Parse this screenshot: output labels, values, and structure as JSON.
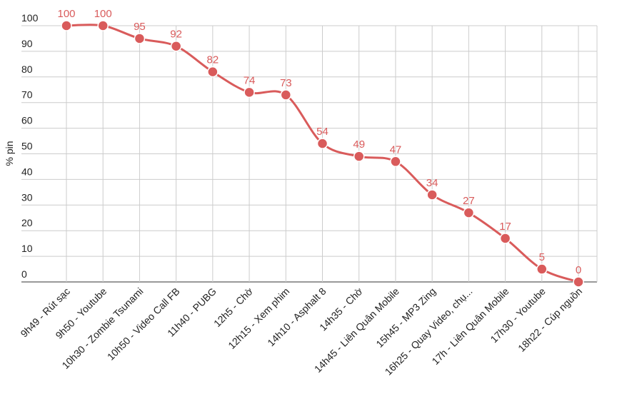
{
  "chart_data": {
    "type": "line",
    "y_label": "% pin",
    "categories": [
      "9h49 - Rút sạc",
      "9h50 - Youtube",
      "10h30 - Zombie Tsunami",
      "10h50 - Video Call FB",
      "11h40 - PUBG",
      "12h5 - Chờ",
      "12h15 - Xem phim",
      "14h10 - Asphalt 8",
      "14h35 - Chờ",
      "14h45 - Liên Quân Mobile",
      "15h45 - MP3 Zing",
      "16h25 - Quay Video, chụ...",
      "17h - Liên Quân Mobile",
      "17h30 - Youtube",
      "18h22 - Cúp nguồn"
    ],
    "series": [
      {
        "name": "% pin",
        "color": "#d95b5b",
        "values": [
          100,
          100,
          95,
          92,
          82,
          74,
          73,
          54,
          49,
          47,
          34,
          27,
          17,
          5,
          0
        ]
      }
    ],
    "ylim": [
      0,
      100
    ],
    "yticks": [
      0,
      10,
      20,
      30,
      40,
      50,
      60,
      70,
      80,
      90,
      100
    ],
    "grid": true,
    "smooth": true,
    "data_labels": true
  }
}
